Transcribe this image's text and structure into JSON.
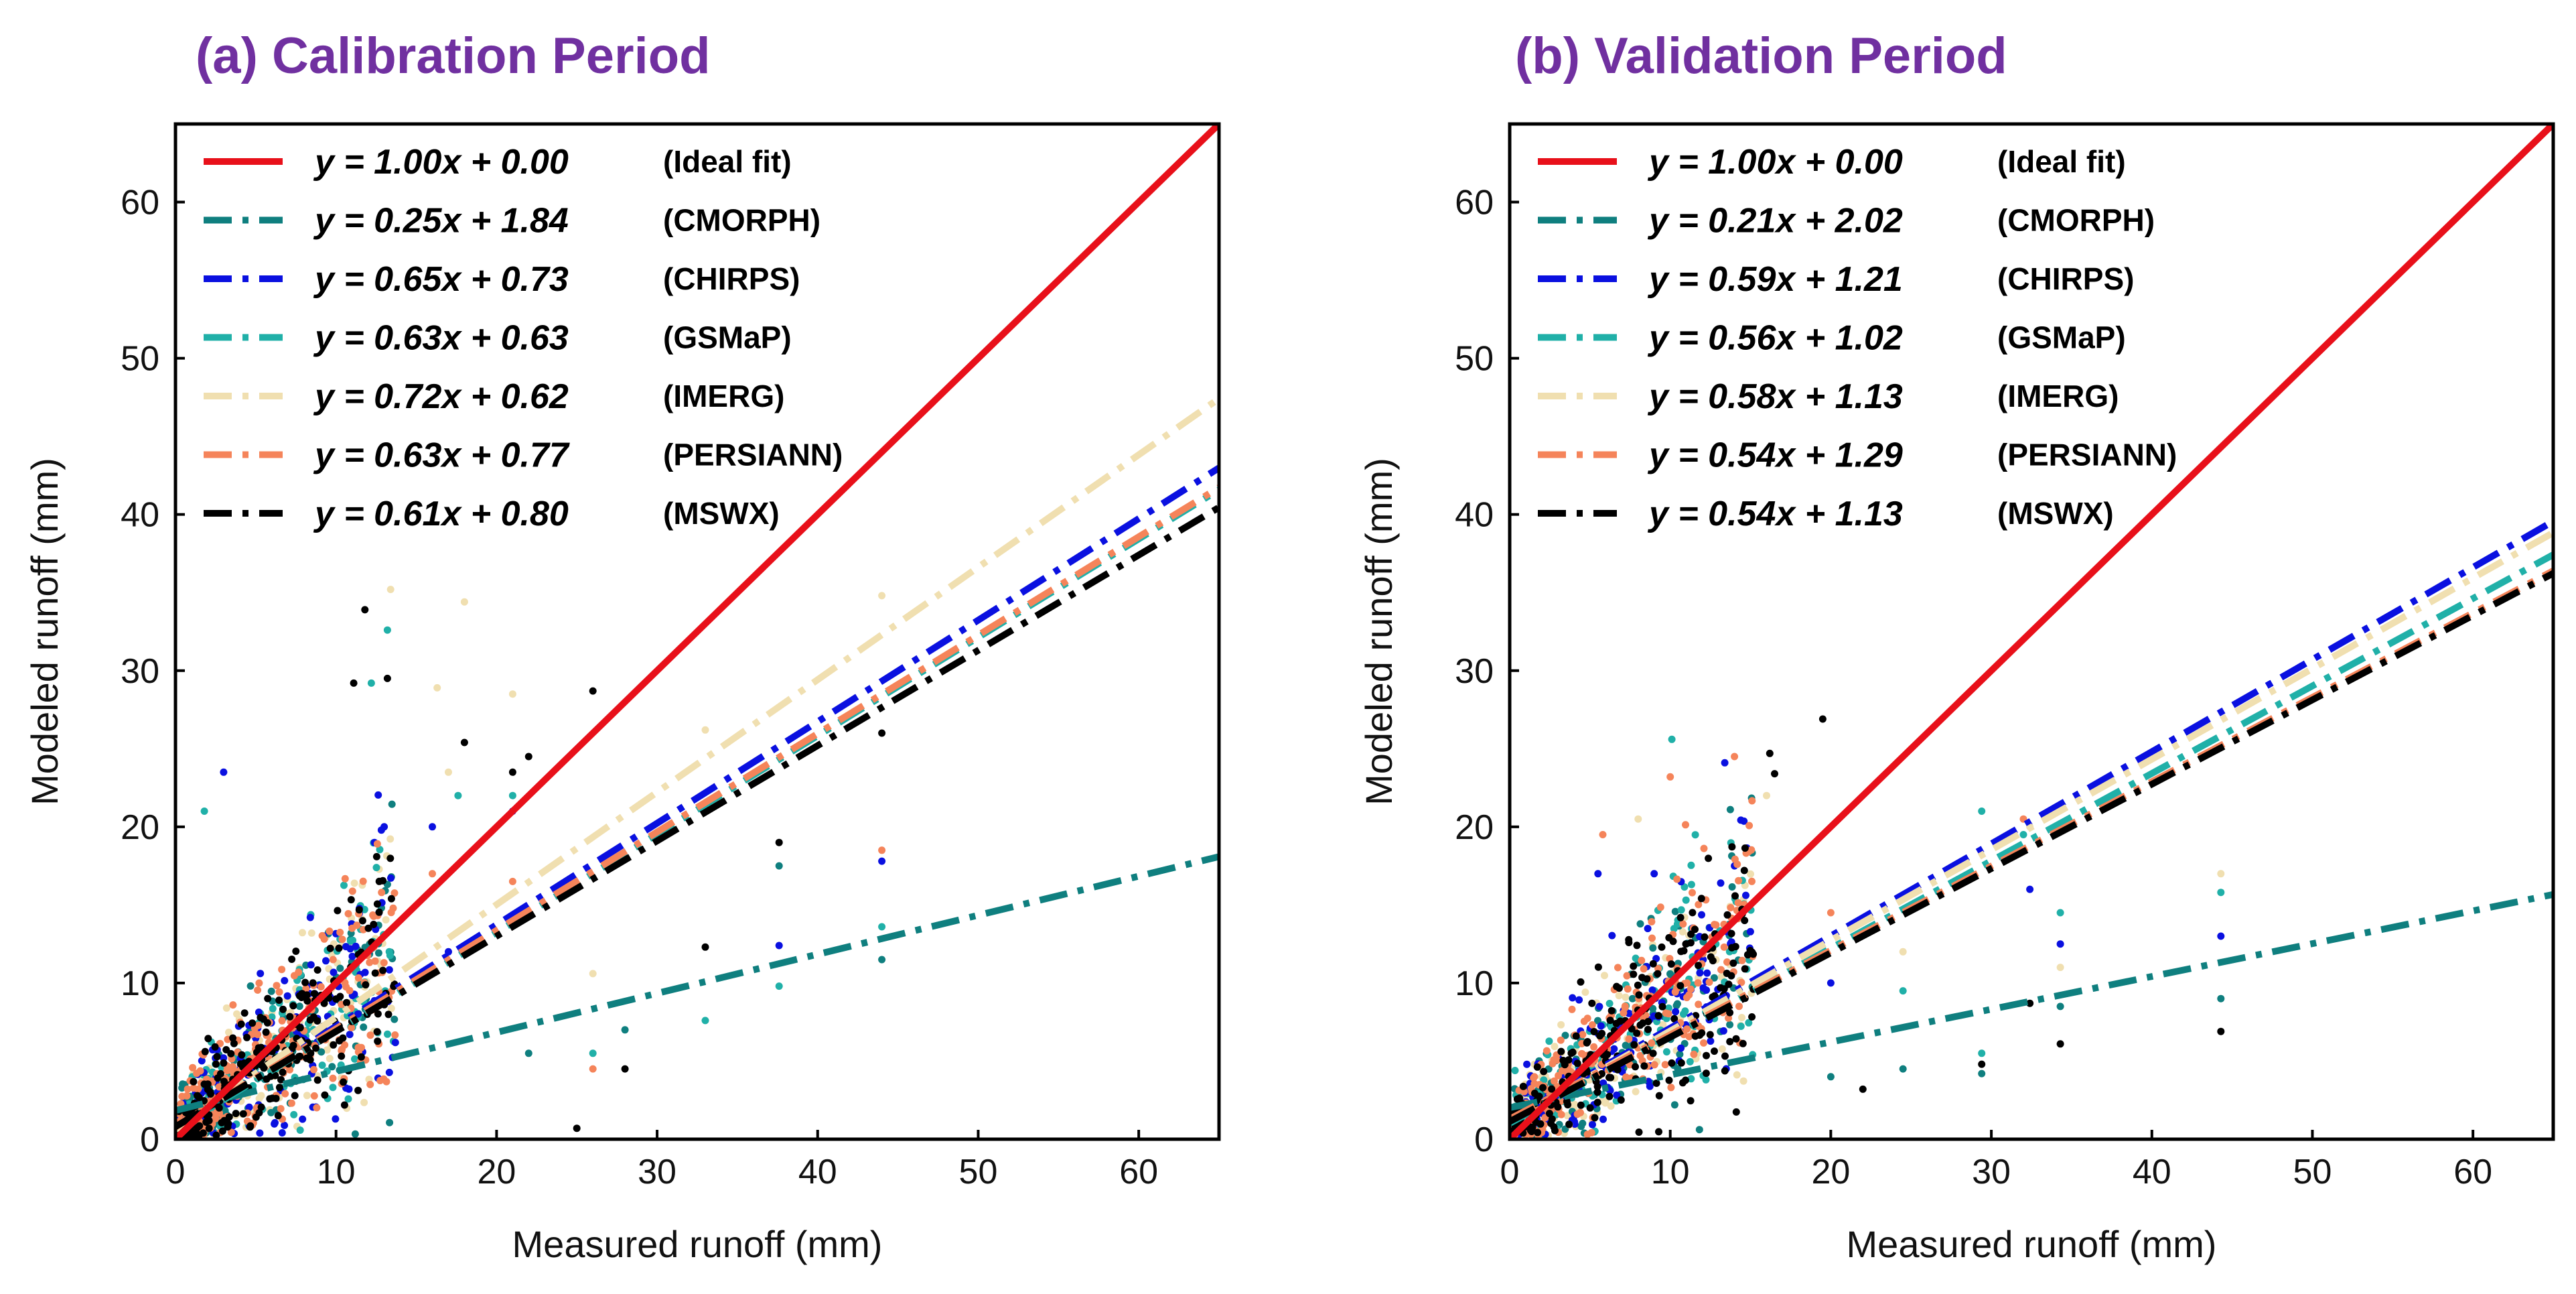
{
  "figure": {
    "panel_a_title": "(a) Calibration Period",
    "panel_b_title": "(b) Validation Period"
  },
  "chart_data": [
    {
      "type": "scatter",
      "title": "(a) Calibration Period",
      "xlabel": "Measured runoff (mm)",
      "ylabel": "Modeled runoff (mm)",
      "xlim": [
        0,
        65
      ],
      "ylim": [
        0,
        65
      ],
      "xticks": [
        0,
        10,
        20,
        30,
        40,
        50,
        60
      ],
      "yticks": [
        0,
        10,
        20,
        30,
        40,
        50,
        60
      ],
      "legend_position": "top-left",
      "series": [
        {
          "name": "(Ideal fit)",
          "equation": "y = 1.00x + 0.00",
          "slope": 1.0,
          "intercept": 0.0,
          "color": "#e8101a",
          "style": "solid"
        },
        {
          "name": "(CMORPH)",
          "equation": "y = 0.25x + 1.84",
          "slope": 0.25,
          "intercept": 1.84,
          "color": "#0f7f7f",
          "style": "dashdot"
        },
        {
          "name": "(CHIRPS)",
          "equation": "y = 0.65x + 0.73",
          "slope": 0.65,
          "intercept": 0.73,
          "color": "#0a10e0",
          "style": "dashdot"
        },
        {
          "name": "(GSMaP)",
          "equation": "y = 0.63x + 0.63",
          "slope": 0.63,
          "intercept": 0.63,
          "color": "#20b0a8",
          "style": "dashdot"
        },
        {
          "name": "(IMERG)",
          "equation": "y = 0.72x + 0.62",
          "slope": 0.72,
          "intercept": 0.62,
          "color": "#f0dfb0",
          "style": "dashdot"
        },
        {
          "name": "(PERSIANN)",
          "equation": "y = 0.63x + 0.77",
          "slope": 0.63,
          "intercept": 0.77,
          "color": "#f5845a",
          "style": "dashdot"
        },
        {
          "name": "(MSWX)",
          "equation": "y = 0.61x + 0.80",
          "slope": 0.61,
          "intercept": 0.8,
          "color": "#000000",
          "style": "dashdot"
        }
      ],
      "scatter_outliers": [
        {
          "series": "CHIRPS",
          "points": [
            [
              3,
              23.5
            ],
            [
              13,
              20
            ],
            [
              16,
              20
            ],
            [
              21,
              21
            ],
            [
              44,
              17.8
            ],
            [
              37.6,
              12.4
            ],
            [
              17,
              12
            ]
          ]
        },
        {
          "series": "GSMaP",
          "points": [
            [
              13.2,
              32.6
            ],
            [
              12.2,
              29.2
            ],
            [
              1.8,
              21
            ],
            [
              17.6,
              22
            ],
            [
              21,
              22
            ],
            [
              44,
              13.6
            ],
            [
              37.6,
              9.8
            ],
            [
              33,
              7.6
            ],
            [
              26,
              5.5
            ]
          ]
        },
        {
          "series": "IMERG",
          "points": [
            [
              13.4,
              35.2
            ],
            [
              18,
              34.4
            ],
            [
              16.3,
              28.9
            ],
            [
              21,
              28.5
            ],
            [
              44,
              34.8
            ],
            [
              33,
              26.2
            ],
            [
              26,
              10.6
            ],
            [
              17,
              23.5
            ]
          ]
        },
        {
          "series": "PERSIANN",
          "points": [
            [
              44,
              18.5
            ],
            [
              21,
              16.5
            ],
            [
              16,
              17
            ],
            [
              26,
              4.5
            ]
          ]
        },
        {
          "series": "MSWX",
          "points": [
            [
              11.8,
              33.9
            ],
            [
              13.2,
              29.5
            ],
            [
              11.1,
              29.2
            ],
            [
              26,
              28.7
            ],
            [
              18,
              25.4
            ],
            [
              22,
              24.5
            ],
            [
              21,
              23.5
            ],
            [
              44,
              26
            ],
            [
              37.6,
              19
            ],
            [
              33,
              12.3
            ],
            [
              28,
              4.5
            ],
            [
              25,
              0.7
            ]
          ]
        },
        {
          "series": "CMORPH",
          "points": [
            [
              37.6,
              17.5
            ],
            [
              44,
              11.5
            ],
            [
              28,
              7
            ],
            [
              22,
              5.5
            ]
          ]
        }
      ]
    },
    {
      "type": "scatter",
      "title": "(b) Validation Period",
      "xlabel": "Measured runoff (mm)",
      "ylabel": "Modeled runoff (mm)",
      "xlim": [
        0,
        65
      ],
      "ylim": [
        0,
        65
      ],
      "xticks": [
        0,
        10,
        20,
        30,
        40,
        50,
        60
      ],
      "yticks": [
        0,
        10,
        20,
        30,
        40,
        50,
        60
      ],
      "legend_position": "top-left",
      "series": [
        {
          "name": "(Ideal fit)",
          "equation": "y = 1.00x + 0.00",
          "slope": 1.0,
          "intercept": 0.0,
          "color": "#e8101a",
          "style": "solid"
        },
        {
          "name": "(CMORPH)",
          "equation": "y = 0.21x + 2.02",
          "slope": 0.21,
          "intercept": 2.02,
          "color": "#0f7f7f",
          "style": "dashdot"
        },
        {
          "name": "(CHIRPS)",
          "equation": "y = 0.59x + 1.21",
          "slope": 0.59,
          "intercept": 1.21,
          "color": "#0a10e0",
          "style": "dashdot"
        },
        {
          "name": "(GSMaP)",
          "equation": "y = 0.56x + 1.02",
          "slope": 0.56,
          "intercept": 1.02,
          "color": "#20b0a8",
          "style": "dashdot"
        },
        {
          "name": "(IMERG)",
          "equation": "y = 0.58x + 1.13",
          "slope": 0.58,
          "intercept": 1.13,
          "color": "#f0dfb0",
          "style": "dashdot"
        },
        {
          "name": "(PERSIANN)",
          "equation": "y = 0.54x + 1.29",
          "slope": 0.54,
          "intercept": 1.29,
          "color": "#f5845a",
          "style": "dashdot"
        },
        {
          "name": "(MSWX)",
          "equation": "y = 0.54x + 1.13",
          "slope": 0.54,
          "intercept": 1.13,
          "color": "#000000",
          "style": "dashdot"
        }
      ],
      "scatter_outliers": [
        {
          "series": "CHIRPS",
          "points": [
            [
              5.5,
              17
            ],
            [
              9,
              17
            ],
            [
              14,
              17.5
            ],
            [
              32.4,
              16
            ],
            [
              34.3,
              12.5
            ],
            [
              44.3,
              13
            ],
            [
              20,
              10
            ]
          ]
        },
        {
          "series": "GSMaP",
          "points": [
            [
              10.1,
              25.6
            ],
            [
              29.4,
              21
            ],
            [
              32,
              19.5
            ],
            [
              34.3,
              14.5
            ],
            [
              44.3,
              15.8
            ],
            [
              24.5,
              9.5
            ],
            [
              29.4,
              5.5
            ]
          ]
        },
        {
          "series": "IMERG",
          "points": [
            [
              8,
              20.5
            ],
            [
              16,
              22
            ],
            [
              32.4,
              20
            ],
            [
              44.3,
              17
            ],
            [
              34.3,
              11
            ],
            [
              24.5,
              12
            ]
          ]
        },
        {
          "series": "PERSIANN",
          "points": [
            [
              10,
              23.2
            ],
            [
              14,
              24.5
            ],
            [
              5.8,
              19.5
            ],
            [
              32,
              20.5
            ],
            [
              20,
              14.5
            ]
          ]
        },
        {
          "series": "MSWX",
          "points": [
            [
              19.5,
              26.9
            ],
            [
              16.2,
              24.7
            ],
            [
              16.5,
              23.4
            ],
            [
              44.3,
              6.9
            ],
            [
              34.3,
              6.1
            ],
            [
              32.4,
              8.7
            ],
            [
              22,
              3.2
            ],
            [
              29.4,
              4.8
            ]
          ]
        },
        {
          "series": "CMORPH",
          "points": [
            [
              24.5,
              4.5
            ],
            [
              29.4,
              4.2
            ],
            [
              34.3,
              8.5
            ],
            [
              44.3,
              9
            ],
            [
              20,
              4
            ]
          ]
        }
      ]
    }
  ]
}
